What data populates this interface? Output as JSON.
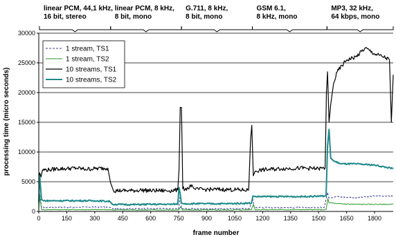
{
  "chart_data": {
    "type": "line",
    "xlabel": "frame number",
    "ylabel": "processing time (micro seconds)",
    "xlim": [
      0,
      1900
    ],
    "ylim": [
      0,
      30000
    ],
    "xticks": [
      0,
      150,
      300,
      450,
      600,
      750,
      900,
      1050,
      1200,
      1350,
      1500,
      1650,
      1800
    ],
    "yticks": [
      0,
      5000,
      10000,
      15000,
      20000,
      25000,
      30000
    ],
    "grid": "horizontal",
    "legend_position": "top-left",
    "segments": [
      {
        "lines": [
          "linear PCM, 44,1 kHz,",
          "16 bit, stereo"
        ],
        "x_start": 0,
        "x_end": 385
      },
      {
        "lines": [
          "linear PCM, 8 kHz,",
          "8 bit, mono"
        ],
        "x_start": 385,
        "x_end": 765
      },
      {
        "lines": [
          "G.711, 8 kHz,",
          "8 bit, mono"
        ],
        "x_start": 765,
        "x_end": 1145
      },
      {
        "lines": [
          "GSM 6.1,",
          "8 kHz, mono"
        ],
        "x_start": 1145,
        "x_end": 1545
      },
      {
        "lines": [
          "MP3, 32 kHz,",
          "64 kbps, mono"
        ],
        "x_start": 1545,
        "x_end": 1900
      }
    ],
    "series": [
      {
        "name": "1 stream, TS1",
        "color": "#3a3a9a",
        "dash": "3,2",
        "width": 1,
        "x": [
          0,
          5,
          15,
          100,
          200,
          300,
          380,
          395,
          500,
          600,
          700,
          750,
          755,
          760,
          765,
          780,
          900,
          1000,
          1130,
          1140,
          1148,
          1155,
          1300,
          1400,
          1530,
          1540,
          1548,
          1555,
          1600,
          1700,
          1800,
          1900
        ],
        "y": [
          400,
          3000,
          700,
          700,
          700,
          750,
          700,
          450,
          450,
          500,
          450,
          460,
          2000,
          3000,
          500,
          450,
          450,
          450,
          500,
          1500,
          2000,
          650,
          650,
          650,
          700,
          2000,
          3200,
          2300,
          2500,
          2300,
          2600,
          2600
        ],
        "noise": 90
      },
      {
        "name": "1 stream, TS2",
        "color": "#2a9a2a",
        "width": 1,
        "x": [
          0,
          5,
          15,
          100,
          200,
          300,
          380,
          395,
          500,
          600,
          700,
          750,
          760,
          770,
          780,
          900,
          1000,
          1140,
          1150,
          1160,
          1300,
          1400,
          1540,
          1550,
          1555,
          1600,
          1700,
          1800,
          1900
        ],
        "y": [
          300,
          2500,
          300,
          300,
          300,
          300,
          300,
          250,
          250,
          250,
          250,
          260,
          800,
          250,
          250,
          250,
          250,
          300,
          1200,
          300,
          300,
          300,
          300,
          2200,
          1500,
          1300,
          1200,
          1200,
          1200
        ],
        "noise": 80
      },
      {
        "name": "10 streams, TS1",
        "color": "#000000",
        "width": 1.2,
        "x": [
          0,
          5,
          12,
          20,
          60,
          100,
          150,
          200,
          250,
          300,
          370,
          385,
          400,
          450,
          500,
          550,
          600,
          650,
          700,
          745,
          752,
          758,
          765,
          772,
          800,
          820,
          830,
          840,
          900,
          1000,
          1100,
          1125,
          1135,
          1142,
          1150,
          1160,
          1200,
          1300,
          1400,
          1500,
          1535,
          1542,
          1548,
          1556,
          1565,
          1580,
          1600,
          1650,
          1700,
          1750,
          1800,
          1850,
          1880,
          1890,
          1900
        ],
        "y": [
          3500,
          6500,
          5800,
          7000,
          7000,
          7200,
          7200,
          7300,
          7100,
          7200,
          7300,
          4800,
          3500,
          3500,
          3500,
          3600,
          3500,
          3500,
          3500,
          3600,
          7000,
          17500,
          17500,
          3800,
          3900,
          4500,
          3900,
          3700,
          3700,
          3700,
          3600,
          3600,
          12000,
          14500,
          6000,
          6800,
          7000,
          7200,
          7300,
          7200,
          7300,
          20000,
          23500,
          15000,
          18000,
          21500,
          23500,
          25500,
          26000,
          27500,
          26500,
          26000,
          25500,
          15000,
          23000
        ],
        "noise": 350
      },
      {
        "name": "10 streams, TS2",
        "color": "#1f8a8a",
        "width": 2,
        "x": [
          0,
          5,
          15,
          25,
          100,
          200,
          300,
          380,
          395,
          500,
          600,
          700,
          745,
          752,
          758,
          764,
          775,
          900,
          1000,
          1140,
          1148,
          1158,
          1300,
          1400,
          1540,
          1548,
          1556,
          1565,
          1580,
          1620,
          1700,
          1800,
          1900
        ],
        "y": [
          1500,
          6000,
          2000,
          1800,
          1800,
          1800,
          1800,
          1700,
          1200,
          1150,
          1200,
          1200,
          1250,
          4000,
          3000,
          1400,
          1300,
          1300,
          1300,
          1400,
          2600,
          2500,
          2500,
          2500,
          2600,
          11000,
          13800,
          9000,
          8500,
          8000,
          8000,
          7800,
          7200
        ],
        "noise": 120
      }
    ]
  }
}
